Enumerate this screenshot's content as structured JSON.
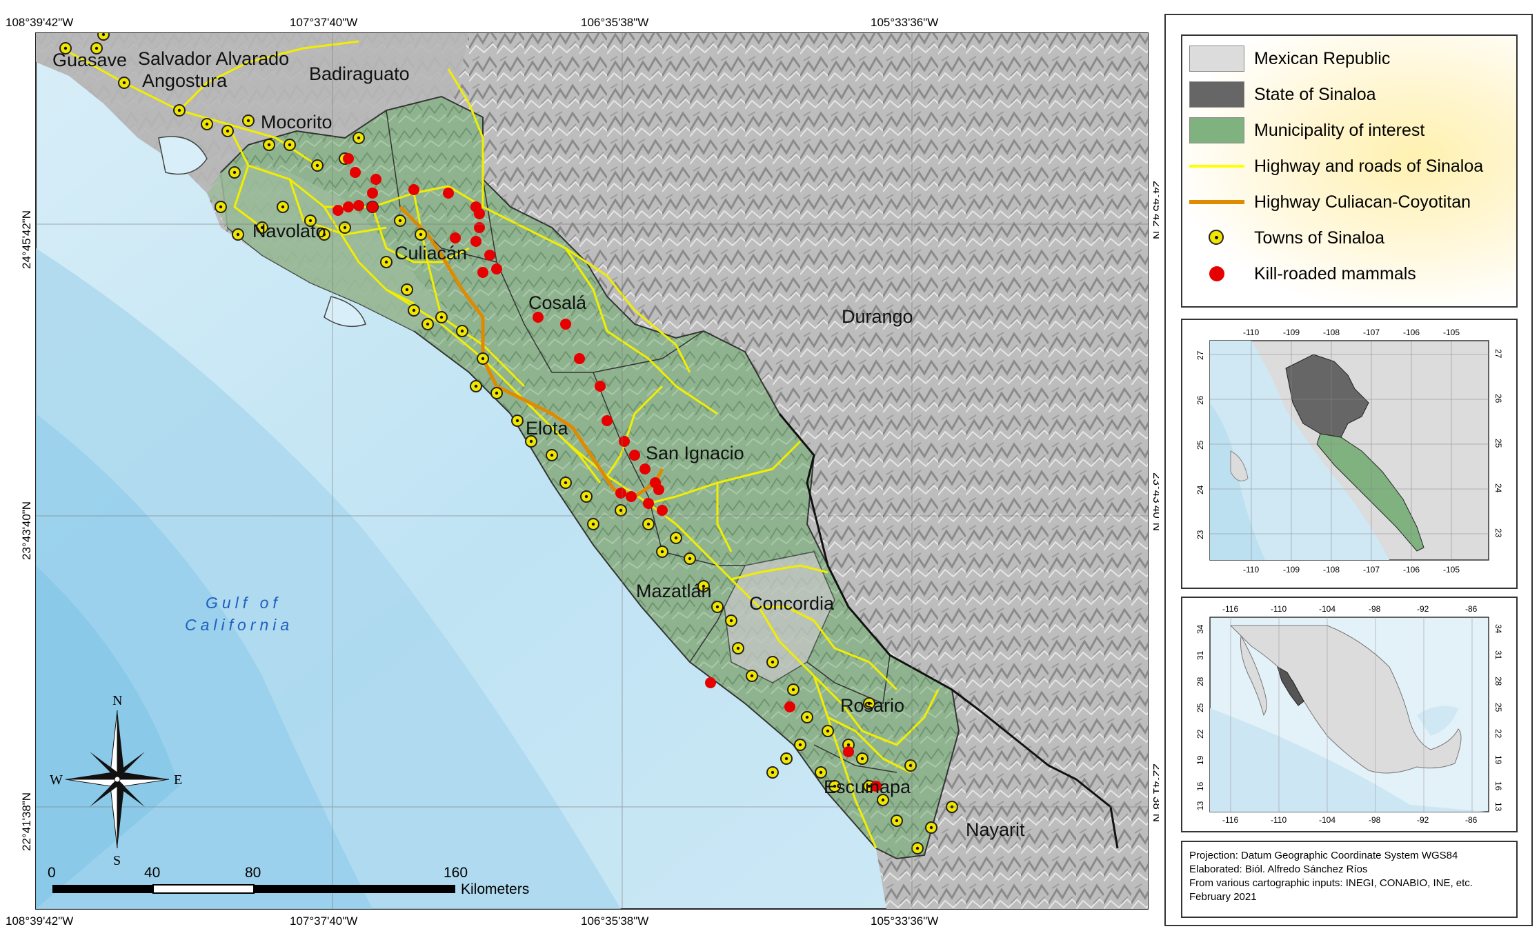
{
  "map": {
    "coords_top": [
      "108°39'42\"W",
      "107°37'40\"W",
      "106°35'38\"W",
      "105°33'36\"W"
    ],
    "coords_bottom": [
      "108°39'42\"W",
      "107°37'40\"W",
      "106°35'38\"W",
      "105°33'36\"W"
    ],
    "coords_left": [
      "24°45'42\"N",
      "23°43'40\"N",
      "22°41'38\"N"
    ],
    "coords_right": [
      "24°45'42\"N",
      "23°43'40\"N",
      "22°41'38\"N"
    ],
    "municipalities": [
      "Guasave",
      "Salvador Alvarado",
      "Angostura",
      "Badiraguato",
      "Mocorito",
      "Navolato",
      "Culiacán",
      "Cosalá",
      "Elota",
      "San Ignacio",
      "Mazatlán",
      "Concordia",
      "Rosario",
      "Escuinapa"
    ],
    "states": [
      "Durango",
      "Nayarit"
    ],
    "sea_line1": "Gulf of",
    "sea_line2": "California",
    "compass": {
      "n": "N",
      "s": "S",
      "e": "E",
      "w": "W"
    },
    "scale": {
      "ticks": [
        "0",
        "40",
        "80",
        "160"
      ],
      "unit": "Kilometers"
    }
  },
  "legend": {
    "items": [
      {
        "label": "Mexican Republic",
        "symbol": "fill",
        "color": "#dcdcdc"
      },
      {
        "label": "State of Sinaloa",
        "symbol": "fill",
        "color": "#666666"
      },
      {
        "label": "Municipality of interest",
        "symbol": "fill",
        "color": "#7fb27f"
      },
      {
        "label": "Highway and roads of Sinaloa",
        "symbol": "line",
        "color": "#ffff00"
      },
      {
        "label": "Highway Culiacan-Coyotitan",
        "symbol": "line",
        "color": "#e08a00"
      },
      {
        "label": "Towns of Sinaloa",
        "symbol": "town",
        "color": "#f2e600"
      },
      {
        "label": "Kill-roaded mammals",
        "symbol": "kill",
        "color": "#e60000"
      }
    ]
  },
  "inset1": {
    "x_labels": [
      "-110",
      "-109",
      "-108",
      "-107",
      "-106",
      "-105"
    ],
    "y_labels": [
      "27",
      "26",
      "25",
      "24",
      "23"
    ]
  },
  "inset2": {
    "x_labels": [
      "-116",
      "-110",
      "-104",
      "-98",
      "-92",
      "-86"
    ],
    "y_labels": [
      "34",
      "31",
      "28",
      "25",
      "22",
      "19",
      "16",
      "13"
    ]
  },
  "credits": {
    "line1": "Projection: Datum Geographic Coordinate System WGS84",
    "line2": "Elaborated: Biól. Alfredo Sánchez Ríos",
    "line3": "From various cartographic inputs: INEGI, CONABIO, INE, etc.",
    "line4": "February 2021"
  }
}
